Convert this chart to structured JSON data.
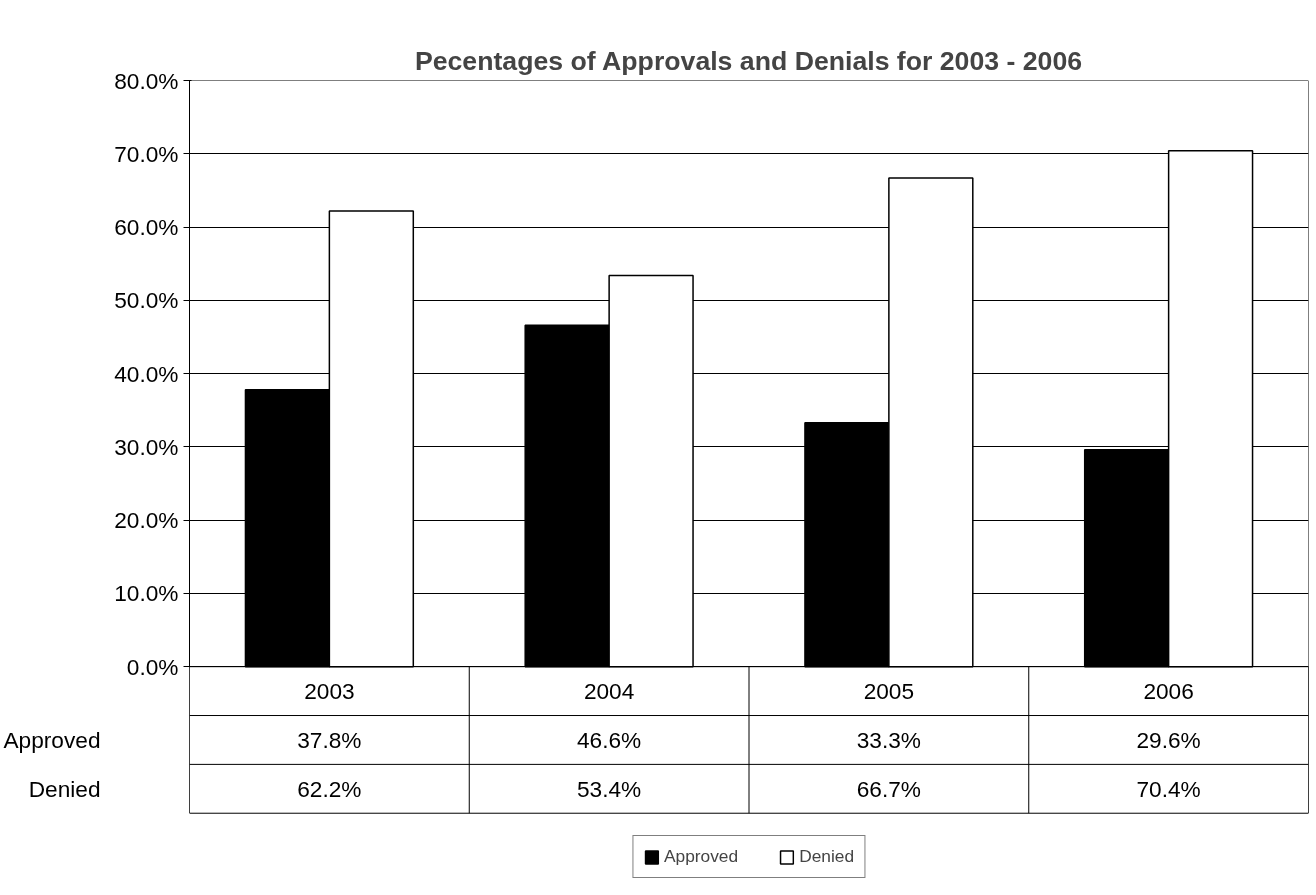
{
  "chart_data": {
    "type": "bar",
    "title": "Pecentages of Approvals and Denials for 2003 - 2006",
    "categories": [
      "2003",
      "2004",
      "2005",
      "2006"
    ],
    "series": [
      {
        "name": "Approved",
        "color": "#000000",
        "values": [
          37.8,
          46.6,
          33.3,
          29.6
        ],
        "value_labels": [
          "37.8%",
          "46.6%",
          "33.3%",
          "29.6%"
        ]
      },
      {
        "name": "Denied",
        "color": "#ffffff",
        "values": [
          62.2,
          53.4,
          66.7,
          70.4
        ],
        "value_labels": [
          "62.2%",
          "53.4%",
          "66.7%",
          "70.4%"
        ]
      }
    ],
    "ylim": [
      0,
      80
    ],
    "yticks": [
      {
        "value": 0,
        "label": "0.0%"
      },
      {
        "value": 10,
        "label": "10.0%"
      },
      {
        "value": 20,
        "label": "20.0%"
      },
      {
        "value": 30,
        "label": "30.0%"
      },
      {
        "value": 40,
        "label": "40.0%"
      },
      {
        "value": 50,
        "label": "50.0%"
      },
      {
        "value": 60,
        "label": "60.0%"
      },
      {
        "value": 70,
        "label": "70.0%"
      },
      {
        "value": 80,
        "label": "80.0%"
      }
    ],
    "grid": "y",
    "legend": "bottom"
  }
}
